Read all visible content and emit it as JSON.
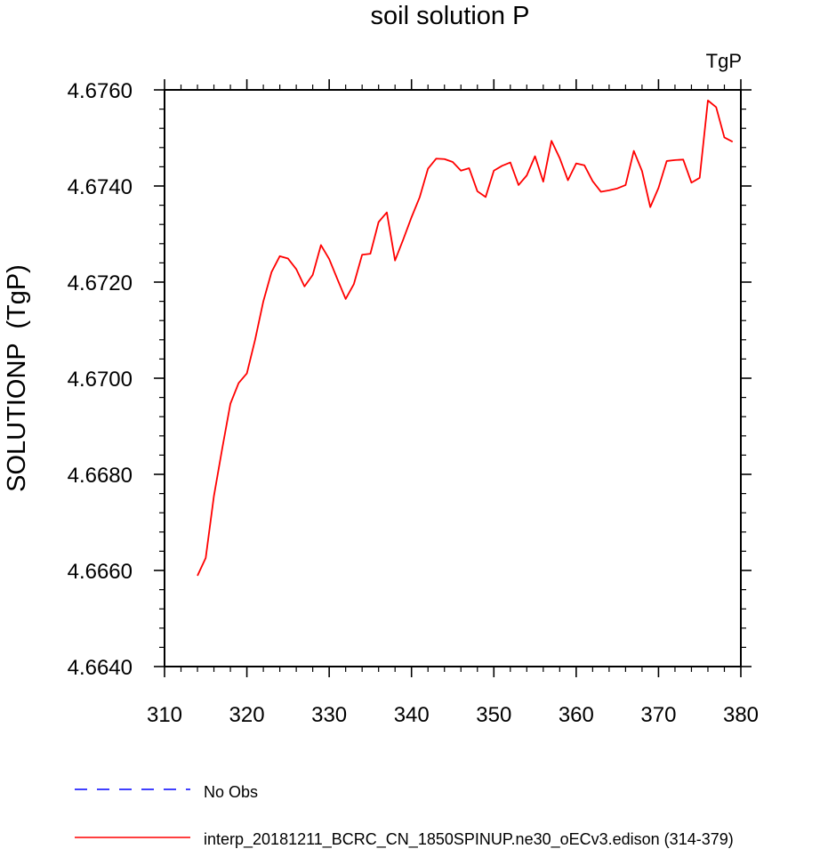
{
  "chart_data": {
    "type": "line",
    "title": "soil solution P",
    "units_label": "TgP",
    "xlabel": "",
    "ylabel": "SOLUTIONP  (TgP)",
    "xlim": [
      310,
      380
    ],
    "ylim": [
      4.664,
      4.676
    ],
    "x_ticks": [
      310,
      320,
      330,
      340,
      350,
      360,
      370,
      380
    ],
    "y_ticks": [
      4.664,
      4.666,
      4.668,
      4.67,
      4.672,
      4.674,
      4.676
    ],
    "x_tick_labels": [
      "310",
      "320",
      "330",
      "340",
      "350",
      "360",
      "370",
      "380"
    ],
    "y_tick_labels": [
      "4.6640",
      "4.6660",
      "4.6680",
      "4.6700",
      "4.6720",
      "4.6740",
      "4.6760"
    ],
    "grid": false,
    "legend_position": "bottom-left",
    "series": [
      {
        "name": "No Obs",
        "color": "#0000ff",
        "dash": "dashed",
        "x": [],
        "y": []
      },
      {
        "name": "interp_20181211_BCRC_CN_1850SPINUP.ne30_oECv3.edison (314-379)",
        "color": "#ff0000",
        "dash": "solid",
        "x": [
          314,
          315,
          316,
          317,
          318,
          319,
          320,
          321,
          322,
          323,
          324,
          325,
          326,
          327,
          328,
          329,
          330,
          331,
          332,
          333,
          334,
          335,
          336,
          337,
          338,
          339,
          340,
          341,
          342,
          343,
          344,
          345,
          346,
          347,
          348,
          349,
          350,
          351,
          352,
          353,
          354,
          355,
          356,
          357,
          358,
          359,
          360,
          361,
          362,
          363,
          364,
          365,
          366,
          367,
          368,
          369,
          370,
          371,
          372,
          373,
          374,
          375,
          376,
          377,
          378,
          379
        ],
        "y": [
          4.66589,
          4.66626,
          4.66755,
          4.66853,
          4.66947,
          4.6699,
          4.6701,
          4.6708,
          4.6716,
          4.67221,
          4.67254,
          4.67249,
          4.67227,
          4.67191,
          4.67215,
          4.67277,
          4.67248,
          4.67206,
          4.67165,
          4.67196,
          4.67257,
          4.67259,
          4.67325,
          4.67345,
          4.67245,
          4.67289,
          4.67335,
          4.67377,
          4.67436,
          4.67457,
          4.67456,
          4.6745,
          4.67432,
          4.67437,
          4.67389,
          4.67377,
          4.67432,
          4.67442,
          4.67449,
          4.67402,
          4.67422,
          4.67462,
          4.67409,
          4.67494,
          4.67458,
          4.67412,
          4.67447,
          4.67443,
          4.6741,
          4.67388,
          4.67391,
          4.67395,
          4.67402,
          4.67473,
          4.67431,
          4.67356,
          4.67396,
          4.67452,
          4.67454,
          4.67455,
          4.67407,
          4.67417,
          4.67578,
          4.67564,
          4.67501,
          4.67492
        ]
      }
    ]
  }
}
